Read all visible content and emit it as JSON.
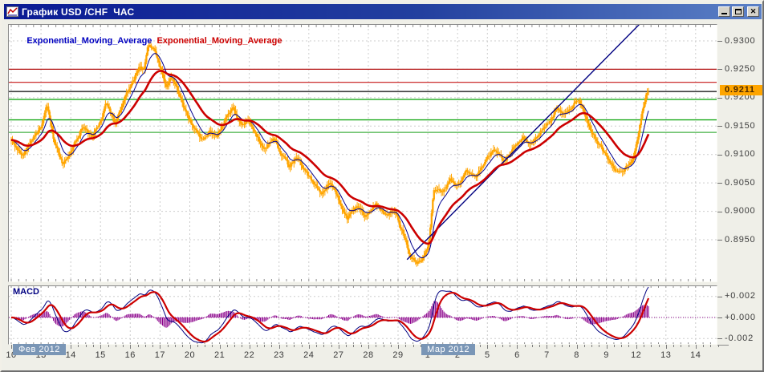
{
  "window": {
    "title": "График USD /CHF  ЧАС",
    "controls": {
      "minimize": "minimize-icon",
      "maximize": "maximize-icon",
      "close": "✕"
    }
  },
  "legend": [
    {
      "label": "Exponential_Moving_Average",
      "color": "#0000c0"
    },
    {
      "label": "Exponential_Moving_Average",
      "color": "#cc0000"
    }
  ],
  "chart_data": {
    "type": "candlestick",
    "instrument": "USD/CHF",
    "timeframe": "HOUR",
    "title": "График USD /CHF ЧАС",
    "x_labels": [
      "10",
      "13",
      "14",
      "15",
      "16",
      "17",
      "20",
      "21",
      "22",
      "23",
      "24",
      "27",
      "28",
      "29",
      "1",
      "2",
      "5",
      "6",
      "7",
      "8",
      "9",
      "12",
      "13",
      "14"
    ],
    "month_markers": [
      {
        "label": "Фев 2012",
        "tick_index": 0
      },
      {
        "label": "Мар 2012",
        "tick_index": 14
      }
    ],
    "y_tick_labels": [
      "0.9300",
      "0.9250",
      "0.9200",
      "0.9150",
      "0.9100",
      "0.9050",
      "0.9000",
      "0.8950"
    ],
    "y_tick_values": [
      0.93,
      0.925,
      0.92,
      0.915,
      0.91,
      0.905,
      0.9,
      0.895
    ],
    "price_min": 0.8878,
    "price_max": 0.9328,
    "current_price": 0.9211,
    "current_price_label": "0.9211",
    "current_price_bg": "#ffa500",
    "bars_per_day": 24,
    "data_end_day": 21.45,
    "candle_color": "#ffa500",
    "price_anchors": [
      [
        0.0,
        0.9125
      ],
      [
        0.35,
        0.9098
      ],
      [
        0.8,
        0.9132
      ],
      [
        1.0,
        0.9148
      ],
      [
        1.2,
        0.9188
      ],
      [
        1.45,
        0.912
      ],
      [
        1.75,
        0.9082
      ],
      [
        2.0,
        0.9105
      ],
      [
        2.4,
        0.915
      ],
      [
        2.7,
        0.9132
      ],
      [
        3.0,
        0.9158
      ],
      [
        3.2,
        0.9192
      ],
      [
        3.5,
        0.9153
      ],
      [
        3.8,
        0.92
      ],
      [
        4.05,
        0.9222
      ],
      [
        4.3,
        0.9255
      ],
      [
        4.45,
        0.9248
      ],
      [
        4.6,
        0.9295
      ],
      [
        4.8,
        0.9282
      ],
      [
        5.0,
        0.9255
      ],
      [
        5.2,
        0.9222
      ],
      [
        5.4,
        0.9238
      ],
      [
        5.65,
        0.9205
      ],
      [
        5.9,
        0.9168
      ],
      [
        6.15,
        0.9145
      ],
      [
        6.4,
        0.9125
      ],
      [
        6.65,
        0.914
      ],
      [
        6.9,
        0.913
      ],
      [
        7.2,
        0.9162
      ],
      [
        7.45,
        0.918
      ],
      [
        7.7,
        0.9152
      ],
      [
        7.95,
        0.916
      ],
      [
        8.2,
        0.9138
      ],
      [
        8.5,
        0.911
      ],
      [
        8.8,
        0.9128
      ],
      [
        9.05,
        0.9105
      ],
      [
        9.35,
        0.9078
      ],
      [
        9.6,
        0.9095
      ],
      [
        9.9,
        0.9068
      ],
      [
        10.2,
        0.9048
      ],
      [
        10.45,
        0.9032
      ],
      [
        10.7,
        0.9052
      ],
      [
        11.0,
        0.9022
      ],
      [
        11.3,
        0.8988
      ],
      [
        11.6,
        0.9008
      ],
      [
        11.9,
        0.8992
      ],
      [
        12.25,
        0.9015
      ],
      [
        12.6,
        0.8994
      ],
      [
        12.9,
        0.9002
      ],
      [
        13.15,
        0.8962
      ],
      [
        13.4,
        0.8925
      ],
      [
        13.65,
        0.8908
      ],
      [
        13.9,
        0.8922
      ],
      [
        14.05,
        0.895
      ],
      [
        14.2,
        0.904
      ],
      [
        14.45,
        0.9032
      ],
      [
        14.75,
        0.9055
      ],
      [
        15.0,
        0.9045
      ],
      [
        15.3,
        0.9072
      ],
      [
        15.6,
        0.9058
      ],
      [
        15.95,
        0.909
      ],
      [
        16.25,
        0.9108
      ],
      [
        16.55,
        0.9088
      ],
      [
        16.9,
        0.9112
      ],
      [
        17.2,
        0.913
      ],
      [
        17.45,
        0.9115
      ],
      [
        17.8,
        0.9142
      ],
      [
        18.1,
        0.916
      ],
      [
        18.35,
        0.9182
      ],
      [
        18.6,
        0.917
      ],
      [
        18.9,
        0.919
      ],
      [
        19.1,
        0.9196
      ],
      [
        19.35,
        0.9158
      ],
      [
        19.65,
        0.9128
      ],
      [
        19.95,
        0.91
      ],
      [
        20.25,
        0.9075
      ],
      [
        20.55,
        0.9068
      ],
      [
        20.85,
        0.9088
      ],
      [
        21.05,
        0.9125
      ],
      [
        21.2,
        0.9175
      ],
      [
        21.35,
        0.9208
      ],
      [
        21.45,
        0.9211
      ]
    ],
    "horizontal_lines": [
      {
        "price": 0.925,
        "color": "#b41414"
      },
      {
        "price": 0.9227,
        "color": "#c41414"
      },
      {
        "price": 0.9211,
        "color": "#000000"
      },
      {
        "price": 0.9197,
        "color": "#00a000"
      },
      {
        "price": 0.9161,
        "color": "#00a000"
      },
      {
        "price": 0.9139,
        "color": "#44b044"
      }
    ],
    "trendline": {
      "from_day": 13.3,
      "from_price": 0.8915,
      "to_day": 21.2,
      "to_price": 0.9334,
      "color": "#000080"
    },
    "ema_fast": {
      "period": 10,
      "color": "#000090",
      "label": "Exponential_Moving_Average"
    },
    "ema_slow": {
      "period": 32,
      "color": "#cc0000",
      "label": "Exponential_Moving_Average"
    },
    "macd": {
      "label": "MACD",
      "fast": 12,
      "slow": 26,
      "signal_period": 9,
      "y_labels": [
        "+0.002",
        "+0.000",
        "-0.002"
      ],
      "y_values": [
        0.002,
        0.0,
        -0.002
      ],
      "histogram_color": "#8b008b",
      "macd_color": "#000080",
      "signal_color": "#cc0000",
      "zero_line_color": "#8b008b"
    },
    "grid": {
      "color": "#cdcdcd",
      "style": "dashed"
    }
  }
}
